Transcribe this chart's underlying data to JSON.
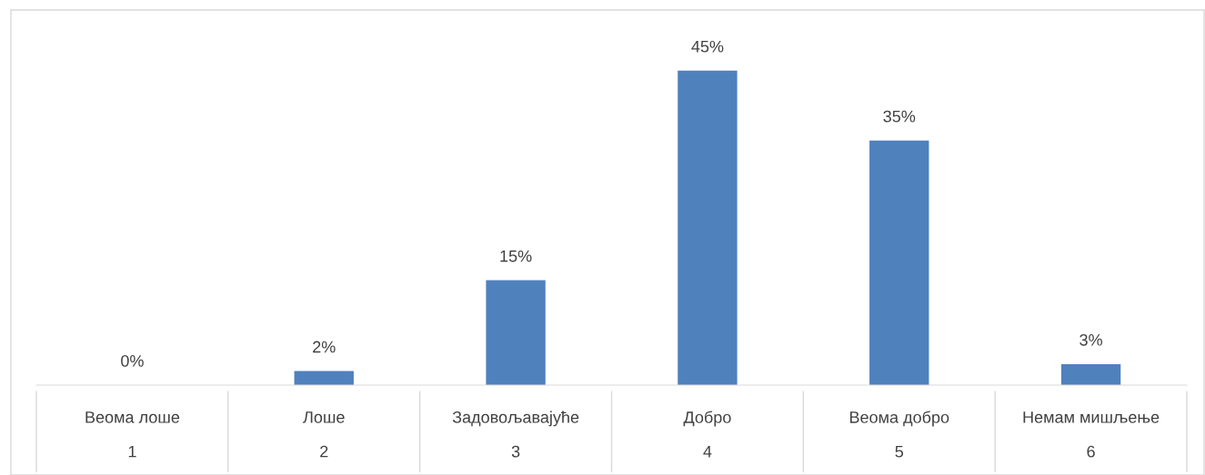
{
  "chart_data": {
    "type": "bar",
    "categories": [
      "Веома лоше\n1",
      "Лоше\n2",
      "Задовољавајуће\n3",
      "Добро\n4",
      "Веома добро\n5",
      "Немам мишљење\n6"
    ],
    "values": [
      0,
      2,
      15,
      45,
      35,
      3
    ],
    "value_labels": [
      "0%",
      "2%",
      "15%",
      "45%",
      "35%",
      "3%"
    ],
    "color": "#4f81bd",
    "grid": false,
    "legend": false
  }
}
